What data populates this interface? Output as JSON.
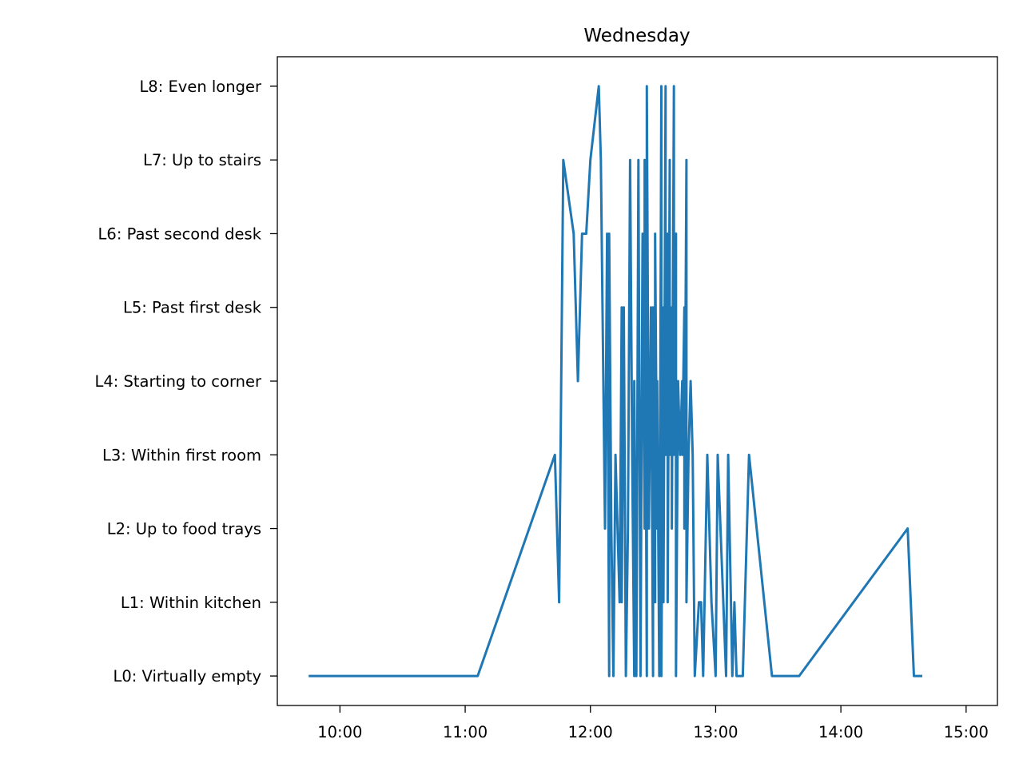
{
  "chart_data": {
    "type": "line",
    "title": "Wednesday",
    "xlabel": "",
    "ylabel": "",
    "x_ticks": [
      "10:00",
      "11:00",
      "12:00",
      "13:00",
      "14:00",
      "15:00"
    ],
    "xlim": [
      "09:30",
      "15:15"
    ],
    "y_categories": [
      "L0: Virtually empty",
      "L1: Within kitchen",
      "L2: Up to food trays",
      "L3: Within first room",
      "L4: Starting to corner",
      "L5: Past first desk",
      "L6: Past second desk",
      "L7: Up to stairs",
      "L8: Even longer"
    ],
    "ylim": [
      -0.4,
      8.4
    ],
    "grid": false,
    "color": "#1f77b4",
    "series": [
      {
        "x": [
          "09:45",
          "11:06",
          "11:43",
          "11:45",
          "11:47",
          "11:52",
          "11:54",
          "11:56",
          "11:56",
          "11:58",
          "12:00",
          "12:04",
          "12:05",
          "12:07",
          "12:08",
          "12:09",
          "12:09",
          "12:10",
          "12:11",
          "12:12",
          "12:14",
          "12:15",
          "12:15",
          "12:16",
          "12:17",
          "12:18",
          "12:19",
          "12:20",
          "12:21",
          "12:21",
          "12:22",
          "12:23",
          "12:24",
          "12:25",
          "12:26",
          "12:26",
          "12:27",
          "12:27",
          "12:28",
          "12:29",
          "12:30",
          "12:30",
          "12:31",
          "12:31",
          "12:32",
          "12:32",
          "12:33",
          "12:34",
          "12:34",
          "12:35",
          "12:35",
          "12:36",
          "12:36",
          "12:37",
          "12:37",
          "12:38",
          "12:38",
          "12:39",
          "12:39",
          "12:40",
          "12:40",
          "12:41",
          "12:41",
          "12:42",
          "12:43",
          "12:44",
          "12:44",
          "12:45",
          "12:45",
          "12:46",
          "12:46",
          "12:47",
          "12:48",
          "12:49",
          "12:50",
          "12:52",
          "12:53",
          "12:54",
          "12:56",
          "12:58",
          "13:00",
          "13:01",
          "13:05",
          "13:06",
          "13:08",
          "13:09",
          "13:10",
          "13:13",
          "13:16",
          "13:27",
          "13:40",
          "14:32",
          "14:35",
          "14:38",
          "14:39"
        ],
        "y": [
          0,
          0,
          3,
          1,
          7,
          6,
          4,
          6,
          6,
          6,
          7,
          8,
          7,
          2,
          6,
          0,
          6,
          2,
          0,
          3,
          1,
          5,
          1,
          5,
          0,
          2,
          7,
          3,
          0,
          4,
          0,
          7,
          0,
          6,
          2,
          7,
          0,
          8,
          2,
          5,
          0,
          5,
          1,
          6,
          2,
          4,
          0,
          8,
          0,
          5,
          1,
          8,
          3,
          6,
          1,
          7,
          3,
          5,
          2,
          8,
          3,
          6,
          0,
          4,
          3,
          4,
          3,
          5,
          2,
          7,
          1,
          3,
          4,
          3,
          0,
          1,
          1,
          0,
          3,
          1,
          0,
          3,
          0,
          3,
          0,
          1,
          0,
          0,
          3,
          0,
          0,
          2,
          0,
          0,
          0
        ]
      }
    ]
  }
}
